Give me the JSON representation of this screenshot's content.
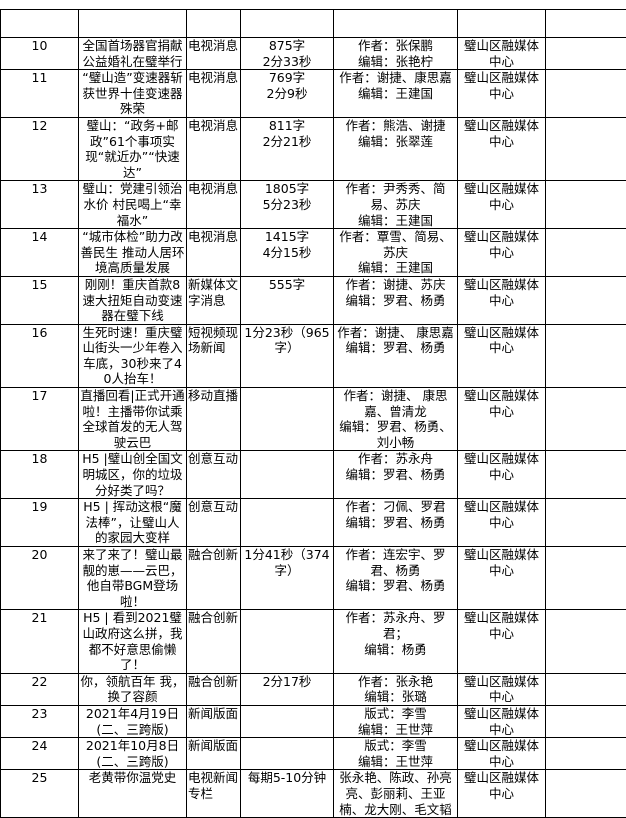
{
  "table": {
    "rows": [
      {
        "no": "10",
        "title": "全国首场器官捐献公益婚礼在璧举行",
        "type": "电视消息",
        "length": "875字\n2分33秒",
        "credits": "作者：张保鹏\n编辑：张艳柠",
        "unit": "璧山区融媒体中心"
      },
      {
        "no": "11",
        "title": "“璧山造”变速器斩获世界十佳变速器殊荣",
        "type": "电视消息",
        "length": "769字\n2分9秒",
        "credits": "作者：谢捷、康思嘉\n编辑：王建国",
        "unit": "璧山区融媒体中心"
      },
      {
        "no": "12",
        "title": "璧山：“政务+邮政”61个事项实现“就近办”“快速达”",
        "type": "电视消息",
        "length": "811字\n2分21秒",
        "credits": "作者：熊浩、谢捷\n编辑：张翠莲",
        "unit": "璧山区融媒体中心"
      },
      {
        "no": "13",
        "title": "璧山：党建引领治水价 村民喝上“幸福水”",
        "type": "电视消息",
        "length": "1805字\n5分23秒",
        "credits": "作者：尹秀秀、简易、苏庆\n编辑：王建国",
        "unit": "璧山区融媒体中心"
      },
      {
        "no": "14",
        "title": "“城市体检”助力改善民生 推动人居环境高质量发展",
        "type": "电视消息",
        "length": "1415字\n4分15秒",
        "credits": "作者：覃雪、简易、苏庆\n编辑：王建国",
        "unit": "璧山区融媒体中心"
      },
      {
        "no": "15",
        "title": "刚刚！重庆首款8速大扭矩自动变速器在璧下线",
        "type": "新媒体文字消息",
        "length": "555字",
        "credits": "作者：谢捷、苏庆\n编辑：罗君、杨勇",
        "unit": "璧山区融媒体中心"
      },
      {
        "no": "16",
        "title": "生死时速！重庆璧山街头一少年卷入车底，30秒来了40人抬车！",
        "type": "短视频现场新闻",
        "length": "1分23秒（965字）",
        "credits": "作者：谢捷、 康思嘉\n编辑：罗君、杨勇",
        "unit": "璧山区融媒体中心"
      },
      {
        "no": "17",
        "title": "直播回看|正式开通啦！主播带你试乘全球首发的无人驾驶云巴",
        "type": "移动直播",
        "length": "",
        "credits": "作者：谢捷、 康思嘉、曾清龙\n编辑：罗君、杨勇、刘小畅",
        "unit": "璧山区融媒体中心"
      },
      {
        "no": "18",
        "title": "H5 |璧山创全国文明城区，你的垃圾分好类了吗？",
        "type": "创意互动",
        "length": "",
        "credits": "作者：苏永舟\n编辑：罗君、杨勇",
        "unit": "璧山区融媒体中心"
      },
      {
        "no": "19",
        "title": "H5 | 挥动这根“魔法棒”，让璧山人的家园大变样",
        "type": "创意互动",
        "length": "",
        "credits": "作者：刁佩、罗君\n编辑：罗君、杨勇",
        "unit": "璧山区融媒体中心"
      },
      {
        "no": "20",
        "title": "来了来了！璧山最靓的崽——云巴，他自带BGM登场啦！",
        "type": "融合创新",
        "length": "1分41秒（374字）",
        "credits": "作者：连宏宇、罗君、杨勇\n编辑：罗君、杨勇",
        "unit": "璧山区融媒体中心"
      },
      {
        "no": "21",
        "title": "H5 | 看到2021璧山政府这么拼，我都不好意思偷懒了！",
        "type": "融合创新",
        "length": "",
        "credits": "作者：苏永舟、罗君；\n编辑：杨勇",
        "unit": "璧山区融媒体中心"
      },
      {
        "no": "22",
        "title": "你，领航百年 我，换了容颜",
        "type": "融合创新",
        "length": "2分17秒",
        "credits": "作者：张永艳\n编辑：张璐",
        "unit": "璧山区融媒体中心"
      },
      {
        "no": "23",
        "title": "2021年4月19日(二、三跨版)",
        "type": "新闻版面",
        "length": "",
        "credits": "版式：李雪\n编辑：王世萍",
        "unit": "璧山区融媒体中心"
      },
      {
        "no": "24",
        "title": "2021年10月8日(二、三跨版)",
        "type": "新闻版面",
        "length": "",
        "credits": "版式：李雪\n编辑：王世萍",
        "unit": "璧山区融媒体中心"
      },
      {
        "no": "25",
        "title": "老黄带你温党史",
        "type": "电视新闻专栏",
        "length": "每期5-10分钟",
        "credits": "张永艳、陈政、孙亮亮、彭丽莉、王亚楠、龙大刚、毛文韬",
        "unit": "璧山区融媒体中心"
      }
    ]
  }
}
